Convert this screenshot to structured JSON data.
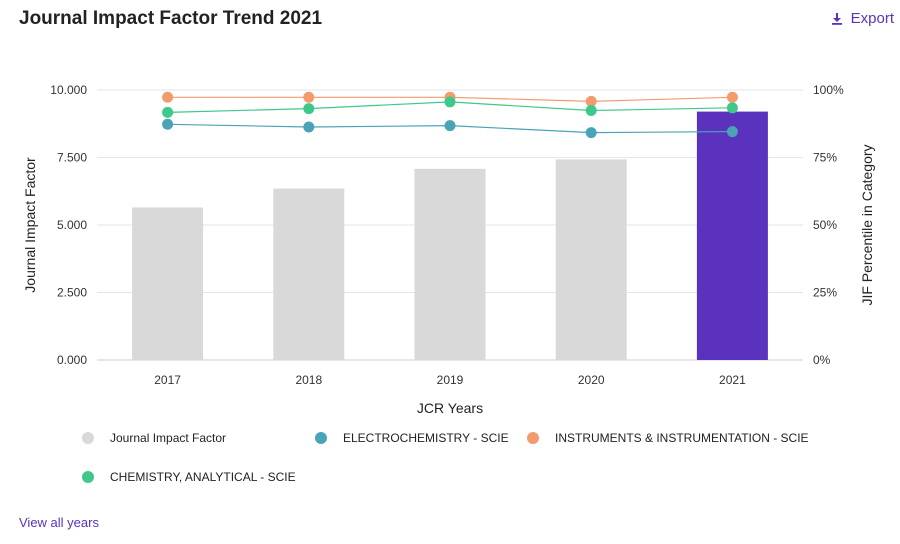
{
  "header": {
    "title": "Journal Impact Factor Trend 2021",
    "export_label": "Export",
    "export_icon": "download-icon"
  },
  "footer": {
    "view_all_label": "View all years"
  },
  "colors": {
    "bar_default": "#d9d9d9",
    "bar_highlight": "#5b32be",
    "electrochemistry": "#4ba3b8",
    "instruments": "#f39b6d",
    "chemistry": "#3ec98a",
    "link": "#5b32be"
  },
  "chart_data": {
    "type": "bar",
    "categories": [
      "2017",
      "2018",
      "2019",
      "2020",
      "2021"
    ],
    "xlabel": "JCR Years",
    "ylabel": "Journal Impact Factor",
    "y2label": "JIF Percentile in Category",
    "ylim": [
      0,
      10
    ],
    "y2lim": [
      0,
      100
    ],
    "yticks": [
      "0.000",
      "2.500",
      "5.000",
      "7.500",
      "10.000"
    ],
    "y2ticks": [
      "0%",
      "25%",
      "50%",
      "75%",
      "100%"
    ],
    "grid": true,
    "highlight_category": "2021",
    "series": [
      {
        "name": "Journal Impact Factor",
        "type": "bar",
        "axis": "left",
        "values": [
          5.65,
          6.35,
          7.08,
          7.43,
          9.2
        ]
      },
      {
        "name": "ELECTROCHEMISTRY - SCIE",
        "type": "line",
        "axis": "right",
        "values": [
          87.3,
          86.3,
          86.8,
          84.2,
          84.6
        ]
      },
      {
        "name": "INSTRUMENTS & INSTRUMENTATION - SCIE",
        "type": "line",
        "axis": "right",
        "values": [
          97.3,
          97.3,
          97.3,
          95.8,
          97.3
        ]
      },
      {
        "name": "CHEMISTRY, ANALYTICAL - SCIE",
        "type": "line",
        "axis": "right",
        "values": [
          91.7,
          93.1,
          95.6,
          92.4,
          93.4
        ]
      }
    ],
    "legend_position": "bottom"
  }
}
